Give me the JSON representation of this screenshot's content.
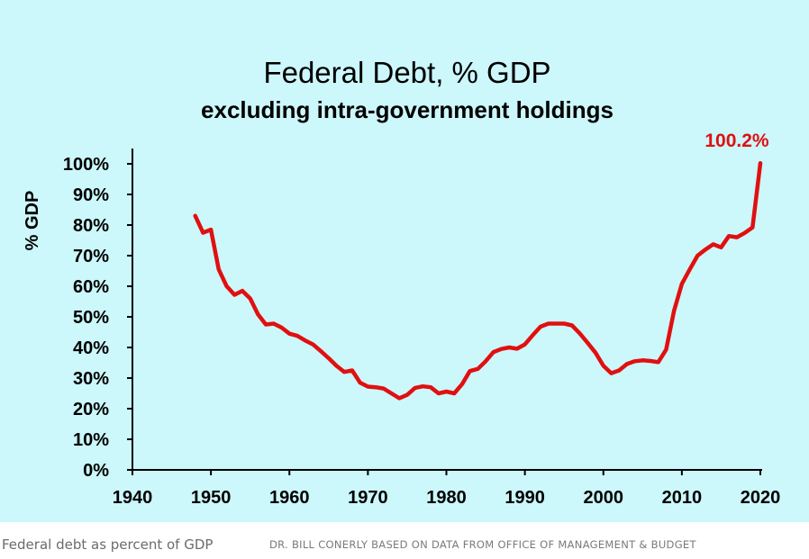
{
  "chart_data": {
    "type": "line",
    "title": "Federal Debt, % GDP",
    "subtitle": "excluding intra-government holdings",
    "ylabel": "% GDP",
    "xlabel": "",
    "xlim": [
      1940,
      2020
    ],
    "ylim": [
      0,
      100
    ],
    "x_ticks": [
      "1940",
      "1950",
      "1960",
      "1970",
      "1980",
      "1990",
      "2000",
      "2010",
      "2020"
    ],
    "y_ticks": [
      "0%",
      "10%",
      "20%",
      "30%",
      "40%",
      "50%",
      "60%",
      "70%",
      "80%",
      "90%",
      "100%"
    ],
    "grid": false,
    "line_color": "#e01010",
    "background_color": "#ccf7fb",
    "annotation": {
      "text": "100.2%",
      "x": 2020,
      "y": 100.2
    },
    "series": [
      {
        "x": [
          1948,
          1949,
          1950,
          1951,
          1952,
          1953,
          1954,
          1955,
          1956,
          1957,
          1958,
          1959,
          1960,
          1961,
          1962,
          1963,
          1964,
          1965,
          1966,
          1967,
          1968,
          1969,
          1970,
          1971,
          1972,
          1973,
          1974,
          1975,
          1976,
          1977,
          1978,
          1979,
          1980,
          1981,
          1982,
          1983,
          1984,
          1985,
          1986,
          1987,
          1988,
          1989,
          1990,
          1991,
          1992,
          1993,
          1994,
          1995,
          1996,
          1997,
          1998,
          1999,
          2000,
          2001,
          2002,
          2003,
          2004,
          2005,
          2006,
          2007,
          2008,
          2009,
          2010,
          2011,
          2012,
          2013,
          2014,
          2015,
          2016,
          2017,
          2018,
          2019,
          2020
        ],
        "values": [
          83,
          77.5,
          78.5,
          65.5,
          60,
          57.2,
          58.5,
          56,
          50.8,
          47.5,
          47.8,
          46.5,
          44.5,
          43.8,
          42.3,
          41,
          38.8,
          36.5,
          34,
          32,
          32.5,
          28.5,
          27.2,
          27,
          26.6,
          25,
          23.4,
          24.5,
          26.8,
          27.3,
          27,
          25,
          25.6,
          25,
          28,
          32.3,
          33,
          35.5,
          38.5,
          39.5,
          40,
          39.6,
          41,
          44,
          46.8,
          47.8,
          47.8,
          47.8,
          47.2,
          44.6,
          41.5,
          38.3,
          34,
          31.6,
          32.5,
          34.6,
          35.5,
          35.8,
          35.6,
          35.2,
          39.3,
          52,
          60.8,
          65.5,
          70,
          72,
          73.7,
          72.7,
          76.4,
          76,
          77.4,
          79.2,
          100.2
        ]
      }
    ]
  },
  "caption": {
    "text": "Federal debt as percent of GDP",
    "credit": "DR. BILL CONERLY BASED ON DATA FROM OFFICE OF MANAGEMENT & BUDGET"
  }
}
